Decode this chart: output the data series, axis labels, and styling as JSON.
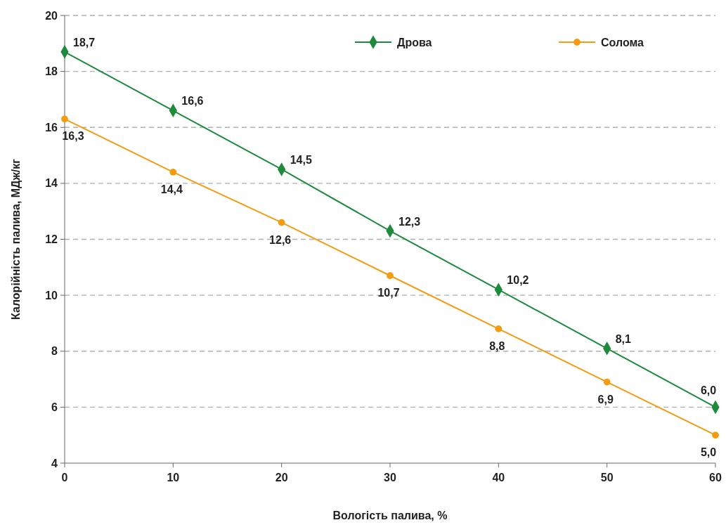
{
  "chart_data": {
    "type": "line",
    "xlabel": "Вологість палива, %",
    "ylabel": "Калорійність палива, МДж/кг",
    "x": [
      0,
      10,
      20,
      30,
      40,
      50,
      60
    ],
    "series": [
      {
        "name": "Дрова",
        "color": "#1e8a3c",
        "marker": "diamond",
        "values": [
          18.7,
          16.6,
          14.5,
          12.3,
          10.2,
          8.1,
          6.0
        ],
        "value_labels": [
          "18,7",
          "16,6",
          "14,5",
          "12,3",
          "10,2",
          "8,1",
          "6,0"
        ]
      },
      {
        "name": "Солома",
        "color": "#f39c12",
        "marker": "circle",
        "values": [
          16.3,
          14.4,
          12.6,
          10.7,
          8.8,
          6.9,
          5.0
        ],
        "value_labels": [
          "16,3",
          "14,4",
          "12,6",
          "10,7",
          "8,8",
          "6,9",
          "5,0"
        ]
      }
    ],
    "xlim": [
      0,
      60
    ],
    "xticks": [
      0,
      10,
      20,
      30,
      40,
      50,
      60
    ],
    "ylim": [
      4,
      20
    ],
    "yticks": [
      4,
      6,
      8,
      10,
      12,
      14,
      16,
      18,
      20
    ],
    "grid": "y",
    "legend": "top",
    "line_style": "solid"
  }
}
